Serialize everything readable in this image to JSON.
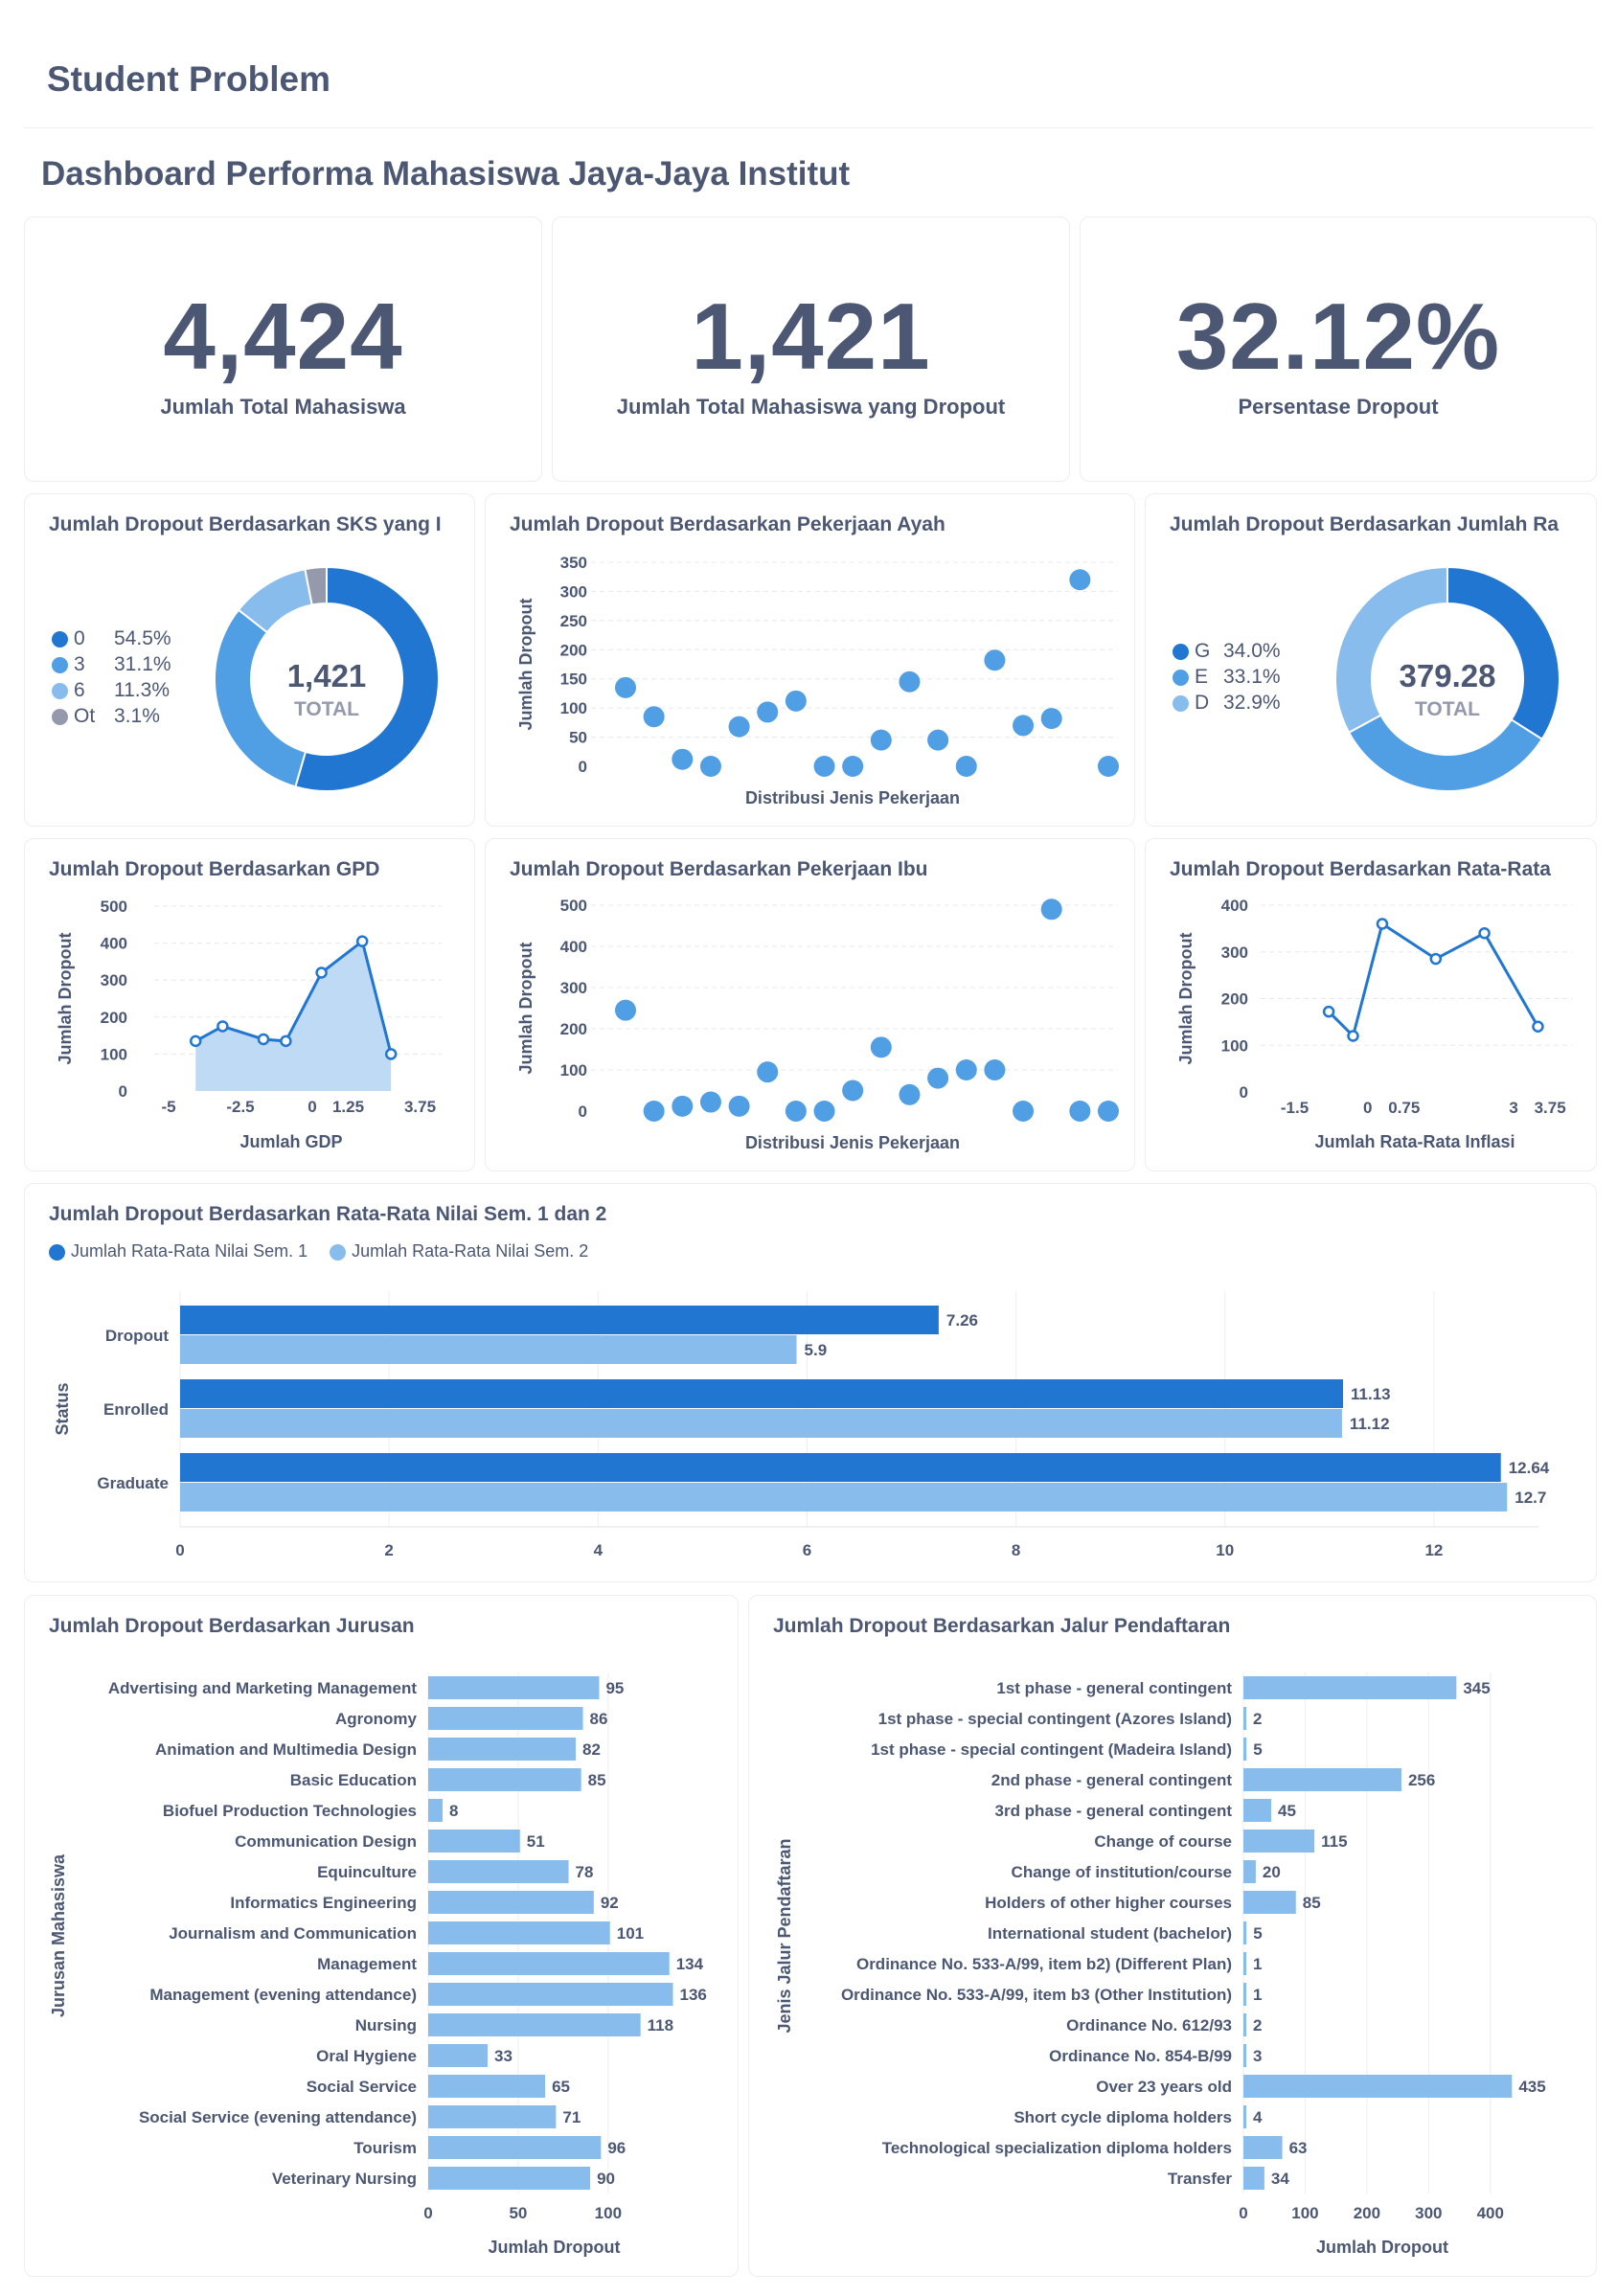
{
  "header": {
    "page_title": "Student Problem",
    "dashboard_title": "Dashboard Performa Mahasiswa Jaya-Jaya Institut"
  },
  "kpis": [
    {
      "value": "4,424",
      "label": "Jumlah Total Mahasiswa"
    },
    {
      "value": "1,421",
      "label": "Jumlah Total Mahasiswa yang Dropout"
    },
    {
      "value": "32.12%",
      "label": "Persentase Dropout"
    }
  ],
  "colors": {
    "dark": "#2176d2",
    "mid": "#509ee3",
    "light": "#88bcec",
    "grey": "#949aab",
    "area": "#bcd8f3"
  },
  "chart_data": [
    {
      "id": "sks",
      "type": "pie",
      "title": "Jumlah Dropout Berdasarkan SKS yang I",
      "center_value": "1,421",
      "center_label": "TOTAL",
      "slices": [
        {
          "label": "0",
          "pct": "54.5%",
          "value": 54.5
        },
        {
          "label": "3",
          "pct": "31.1%",
          "value": 31.1
        },
        {
          "label": "6",
          "pct": "11.3%",
          "value": 11.3
        },
        {
          "label": "Ot",
          "pct": "3.1%",
          "value": 3.1
        }
      ]
    },
    {
      "id": "ayah",
      "type": "scatter",
      "title": "Jumlah Dropout Berdasarkan Pekerjaan Ayah",
      "xlabel": "Distribusi Jenis Pekerjaan",
      "ylabel": "Jumlah Dropout",
      "ylim": [
        0,
        350
      ],
      "yticks": [
        0,
        50,
        100,
        150,
        200,
        250,
        300,
        350
      ],
      "values": [
        135,
        85,
        12,
        0,
        68,
        93,
        112,
        0,
        0,
        45,
        145,
        45,
        0,
        182,
        70,
        82,
        320,
        0
      ]
    },
    {
      "id": "ra",
      "type": "pie",
      "title": "Jumlah Dropout Berdasarkan Jumlah Ra",
      "center_value": "379.28",
      "center_label": "TOTAL",
      "slices": [
        {
          "label": "G",
          "pct": "34.0%",
          "value": 34.0
        },
        {
          "label": "E",
          "pct": "33.1%",
          "value": 33.1
        },
        {
          "label": "D",
          "pct": "32.9%",
          "value": 32.9
        }
      ]
    },
    {
      "id": "gpd",
      "type": "area",
      "title": "Jumlah Dropout Berdasarkan GPD",
      "xlabel": "Jumlah GDP",
      "ylabel": "Jumlah Dropout",
      "xlim": [
        -5.5,
        4.5
      ],
      "ylim": [
        0,
        500
      ],
      "yticks": [
        0,
        100,
        200,
        300,
        400,
        500
      ],
      "xticks": [
        "-5",
        "-2.5",
        "0",
        "1.25",
        "3.75"
      ],
      "xtick_values": [
        -5,
        -2.5,
        0,
        1.25,
        3.75
      ],
      "x": [
        -4.06,
        -3.12,
        -1.7,
        -0.92,
        0.32,
        1.74,
        2.74
      ],
      "values": [
        135,
        175,
        140,
        135,
        320,
        405,
        100
      ]
    },
    {
      "id": "ibu",
      "type": "scatter",
      "title": "Jumlah Dropout Berdasarkan Pekerjaan Ibu",
      "xlabel": "Distribusi Jenis Pekerjaan",
      "ylabel": "Jumlah Dropout",
      "ylim": [
        0,
        500
      ],
      "yticks": [
        0,
        100,
        200,
        300,
        400,
        500
      ],
      "values": [
        245,
        0,
        12,
        22,
        12,
        95,
        0,
        0,
        50,
        155,
        40,
        80,
        100,
        100,
        0,
        490,
        0,
        0
      ]
    },
    {
      "id": "inflasi",
      "type": "line",
      "title": "Jumlah Dropout Berdasarkan Rata-Rata",
      "xlabel": "Jumlah Rata-Rata Inflasi",
      "ylabel": "Jumlah Dropout",
      "xlim": [
        -2.2,
        4.2
      ],
      "ylim": [
        0,
        400
      ],
      "yticks": [
        0,
        100,
        200,
        300,
        400
      ],
      "xticks": [
        "-1.5",
        "0",
        "0.75",
        "3",
        "3.75"
      ],
      "xtick_values": [
        -1.5,
        0,
        0.75,
        3,
        3.75
      ],
      "x": [
        -0.8,
        -0.3,
        0.3,
        1.4,
        2.4,
        3.5
      ],
      "values": [
        172,
        120,
        360,
        285,
        340,
        140
      ]
    },
    {
      "id": "nilai",
      "type": "bar",
      "orientation": "horizontal",
      "title": "Jumlah Dropout Berdasarkan Rata-Rata Nilai Sem. 1 dan 2",
      "ylabel": "Status",
      "xlim": [
        0,
        13
      ],
      "xticks": [
        0,
        2,
        4,
        6,
        8,
        10,
        12
      ],
      "categories": [
        "Dropout",
        "Enrolled",
        "Graduate"
      ],
      "series": [
        {
          "name": "Jumlah Rata-Rata Nilai Sem. 1",
          "values": [
            7.26,
            11.13,
            12.64
          ]
        },
        {
          "name": "Jumlah Rata-Rata Nilai Sem. 2",
          "values": [
            5.9,
            11.12,
            12.7
          ]
        }
      ]
    },
    {
      "id": "jurusan",
      "type": "bar",
      "orientation": "horizontal",
      "title": "Jumlah Dropout Berdasarkan Jurusan",
      "xlabel": "Jumlah Dropout",
      "ylabel": "Jurusan Mahasiswa",
      "xlim": [
        0,
        140
      ],
      "xticks": [
        0,
        50,
        100
      ],
      "categories": [
        "Advertising and Marketing Management",
        "Agronomy",
        "Animation and Multimedia Design",
        "Basic Education",
        "Biofuel Production Technologies",
        "Communication Design",
        "Equinculture",
        "Informatics Engineering",
        "Journalism and Communication",
        "Management",
        "Management (evening attendance)",
        "Nursing",
        "Oral Hygiene",
        "Social Service",
        "Social Service (evening attendance)",
        "Tourism",
        "Veterinary Nursing"
      ],
      "values": [
        95,
        86,
        82,
        85,
        8,
        51,
        78,
        92,
        101,
        134,
        136,
        118,
        33,
        65,
        71,
        96,
        90
      ]
    },
    {
      "id": "jalur",
      "type": "bar",
      "orientation": "horizontal",
      "title": "Jumlah Dropout Berdasarkan Jalur Pendaftaran",
      "xlabel": "Jumlah Dropout",
      "ylabel": "Jenis Jalur Pendaftaran",
      "xlim": [
        0,
        450
      ],
      "xticks": [
        0,
        100,
        200,
        300,
        400
      ],
      "categories": [
        "1st phase - general contingent",
        "1st phase - special contingent (Azores Island)",
        "1st phase - special contingent (Madeira Island)",
        "2nd phase - general contingent",
        "3rd phase - general contingent",
        "Change of course",
        "Change of institution/course",
        "Holders of other higher courses",
        "International student (bachelor)",
        "Ordinance No. 533-A/99, item b2) (Different Plan)",
        "Ordinance No. 533-A/99, item b3 (Other Institution)",
        "Ordinance No. 612/93",
        "Ordinance No. 854-B/99",
        "Over 23 years old",
        "Short cycle diploma holders",
        "Technological specialization diploma holders",
        "Transfer"
      ],
      "values": [
        345,
        2,
        5,
        256,
        45,
        115,
        20,
        85,
        5,
        1,
        1,
        2,
        3,
        435,
        4,
        63,
        34
      ]
    }
  ]
}
